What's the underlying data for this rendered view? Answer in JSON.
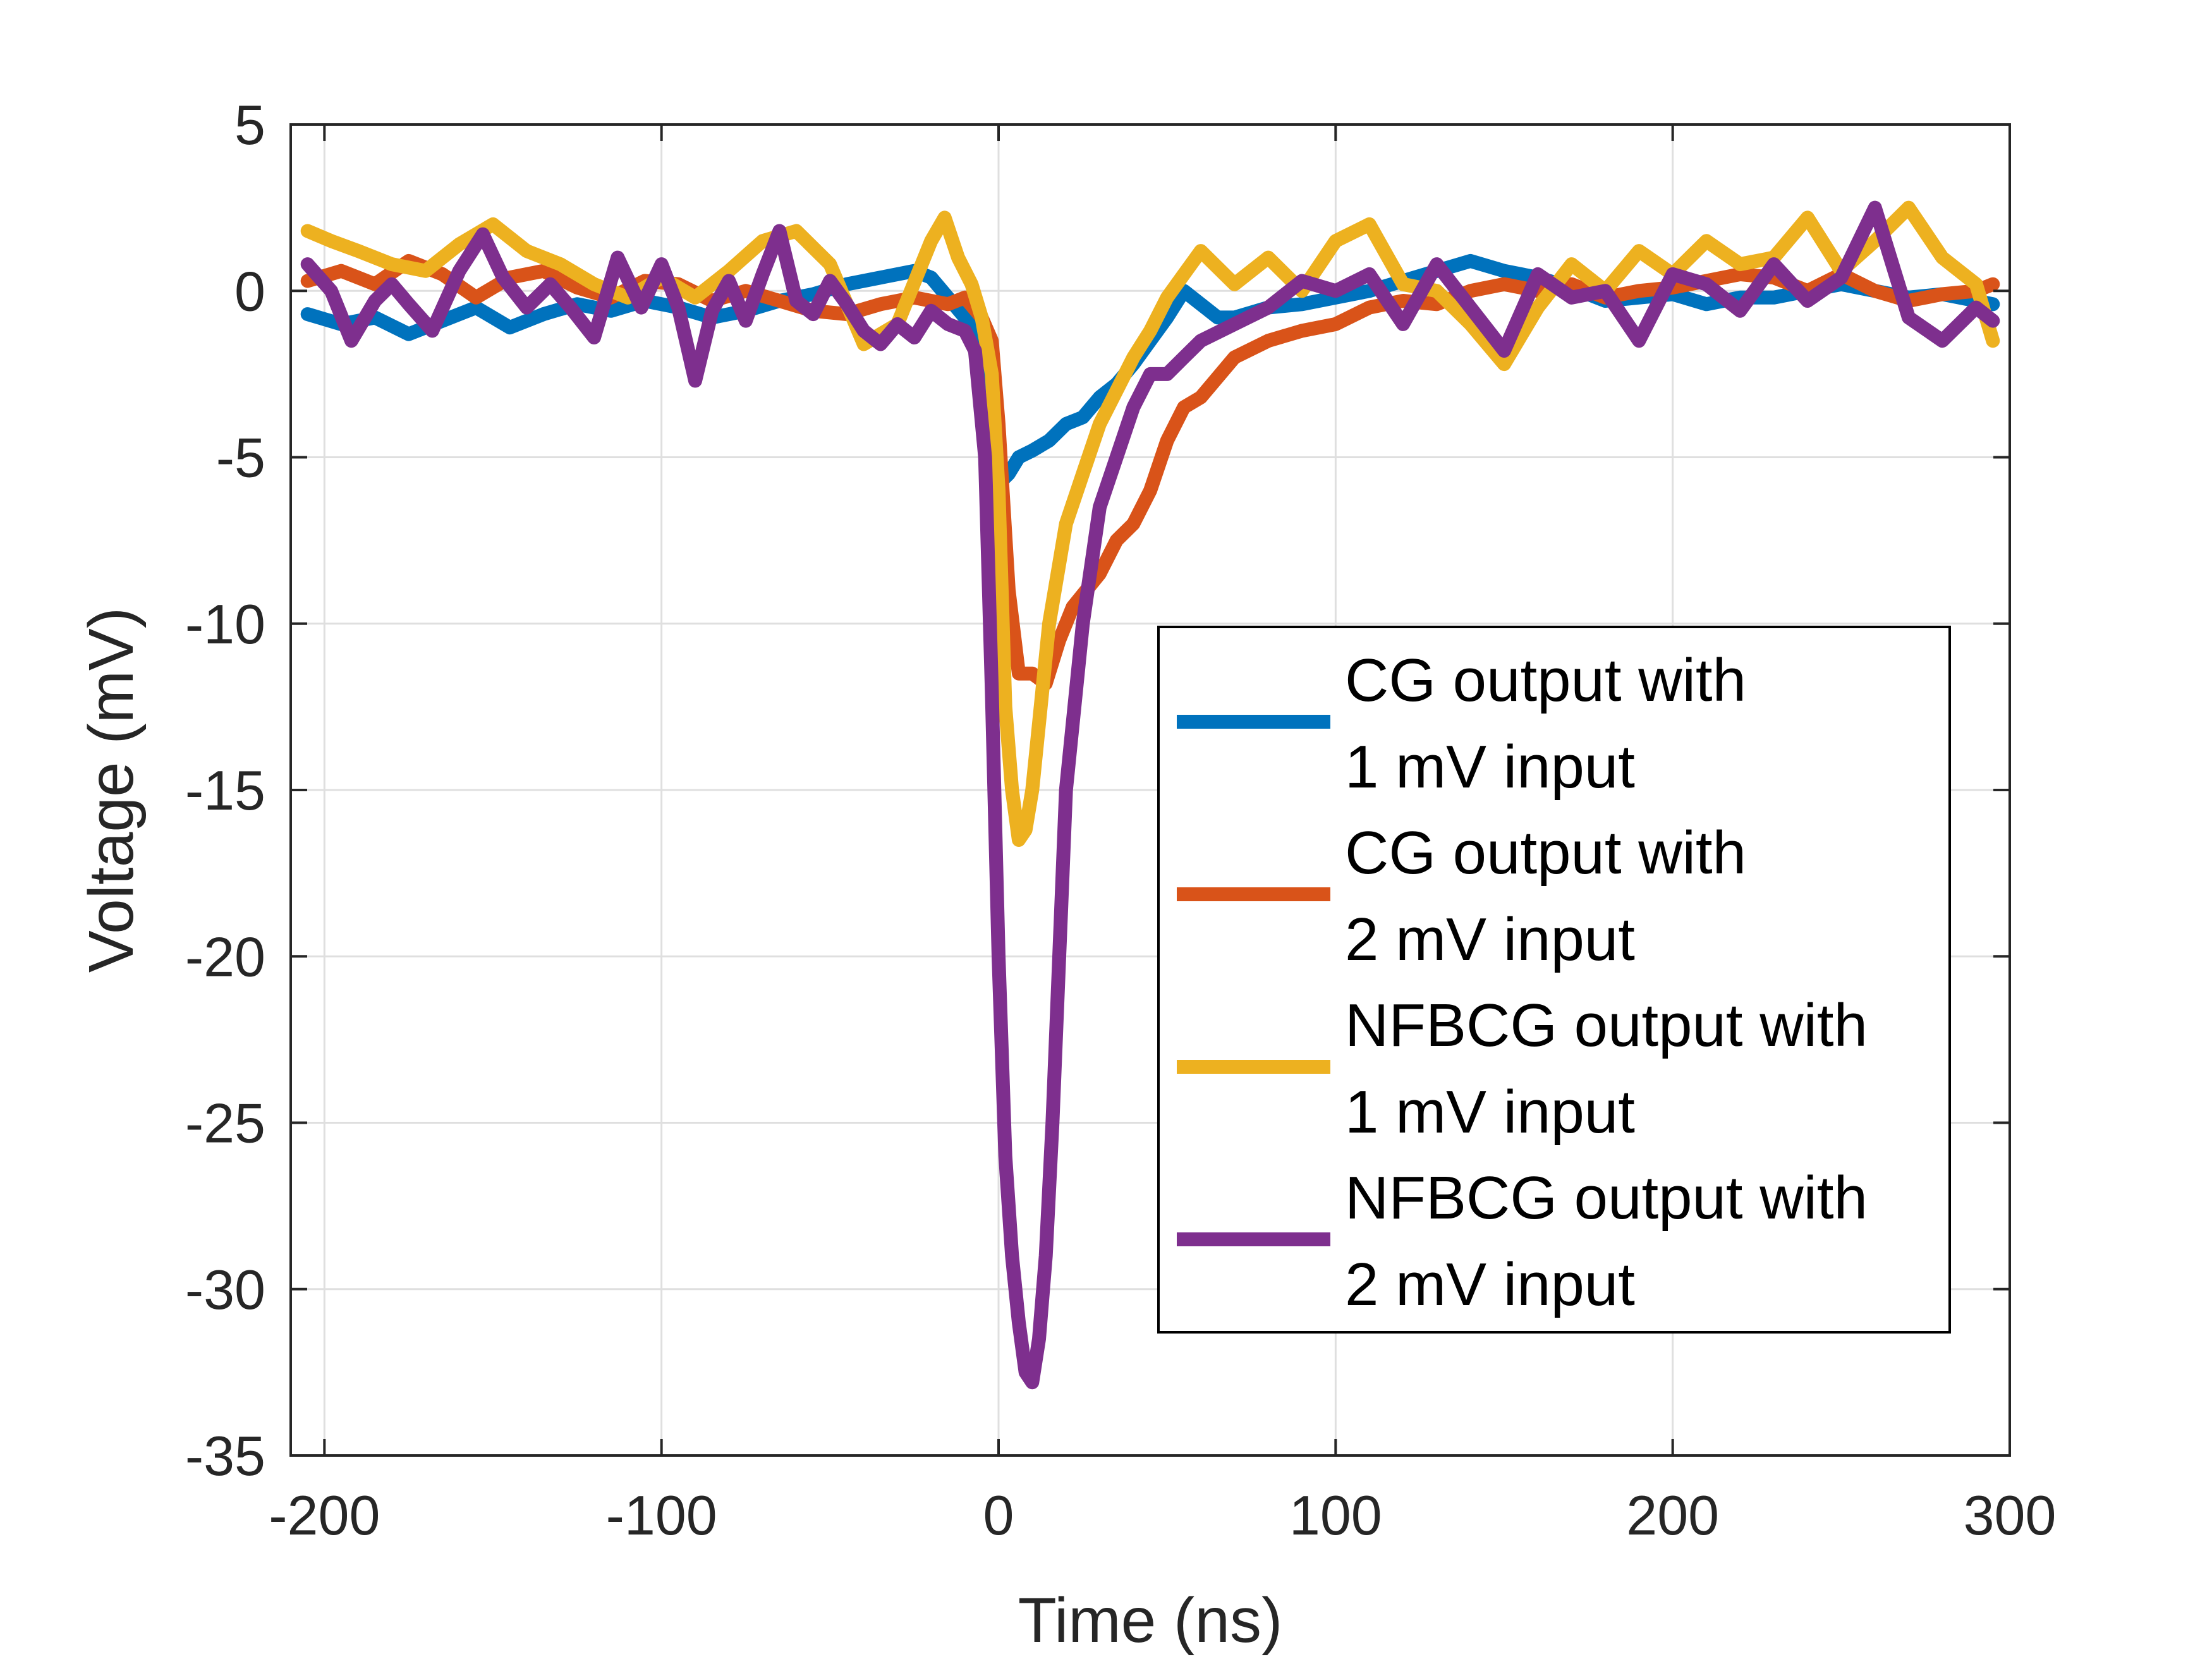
{
  "chart_data": {
    "type": "line",
    "xlabel": "Time (ns)",
    "ylabel": "Voltage (mV)",
    "xlim": [
      -210,
      300
    ],
    "ylim": [
      -35,
      5
    ],
    "xticks": [
      -200,
      -100,
      0,
      100,
      200,
      300
    ],
    "yticks": [
      5,
      0,
      -5,
      -10,
      -15,
      -20,
      -25,
      -30,
      -35
    ],
    "xtick_labels": [
      "-200",
      "-100",
      "0",
      "100",
      "200",
      "300"
    ],
    "ytick_labels": [
      "5",
      "0",
      "-5",
      "-10",
      "-15",
      "-20",
      "-25",
      "-30",
      "-35"
    ],
    "grid": true,
    "legend": "inside-right",
    "series": [
      {
        "name": "CG output with 1 mV input",
        "legend_lines": [
          "CG output with",
          "1 mV input"
        ],
        "color": "#0072BD",
        "x": [
          -205,
          -195,
          -185,
          -175,
          -165,
          -155,
          -145,
          -135,
          -125,
          -115,
          -105,
          -95,
          -85,
          -75,
          -65,
          -55,
          -45,
          -35,
          -25,
          -20,
          -15,
          -10,
          -5,
          -3,
          0,
          3,
          6,
          10,
          15,
          20,
          25,
          30,
          35,
          40,
          45,
          50,
          55,
          60,
          65,
          70,
          80,
          90,
          100,
          110,
          120,
          130,
          140,
          150,
          160,
          170,
          180,
          190,
          200,
          210,
          220,
          230,
          240,
          250,
          260,
          270,
          280,
          290,
          295
        ],
        "y": [
          -0.7,
          -1.0,
          -0.8,
          -1.3,
          -0.9,
          -0.5,
          -1.1,
          -0.7,
          -0.4,
          -0.6,
          -0.3,
          -0.5,
          -0.8,
          -0.6,
          -0.3,
          -0.1,
          0.2,
          0.4,
          0.6,
          0.4,
          -0.2,
          -0.8,
          -1.3,
          -3.0,
          -5.8,
          -5.5,
          -5.0,
          -4.8,
          -4.5,
          -4.0,
          -3.8,
          -3.2,
          -2.8,
          -2.2,
          -1.5,
          -0.8,
          0.0,
          -0.4,
          -0.8,
          -0.8,
          -0.5,
          -0.4,
          -0.2,
          0.0,
          0.3,
          0.6,
          0.9,
          0.6,
          0.4,
          0.1,
          -0.3,
          -0.2,
          -0.1,
          -0.4,
          -0.2,
          -0.2,
          0.0,
          0.2,
          0.0,
          -0.2,
          -0.1,
          -0.3,
          -0.4
        ]
      },
      {
        "name": "CG output with 2 mV input",
        "legend_lines": [
          "CG output with",
          "2 mV input"
        ],
        "color": "#D95319",
        "x": [
          -205,
          -195,
          -185,
          -175,
          -165,
          -155,
          -145,
          -135,
          -125,
          -115,
          -105,
          -95,
          -85,
          -75,
          -65,
          -55,
          -45,
          -35,
          -25,
          -15,
          -10,
          -5,
          -2,
          0,
          3,
          6,
          10,
          14,
          18,
          22,
          26,
          30,
          35,
          40,
          45,
          50,
          55,
          60,
          70,
          80,
          90,
          100,
          110,
          120,
          130,
          140,
          150,
          160,
          170,
          180,
          190,
          200,
          210,
          220,
          230,
          240,
          250,
          260,
          270,
          280,
          290,
          295
        ],
        "y": [
          0.3,
          0.6,
          0.2,
          0.9,
          0.5,
          -0.2,
          0.4,
          0.6,
          0.1,
          -0.2,
          0.3,
          0.2,
          -0.3,
          0.0,
          -0.3,
          -0.6,
          -0.7,
          -0.4,
          -0.2,
          -0.4,
          -0.2,
          -0.8,
          -1.5,
          -4.0,
          -9.0,
          -11.5,
          -11.5,
          -11.8,
          -10.5,
          -9.5,
          -9.0,
          -8.5,
          -7.5,
          -7.0,
          -6.0,
          -4.5,
          -3.5,
          -3.2,
          -2.0,
          -1.5,
          -1.2,
          -1.0,
          -0.5,
          -0.3,
          -0.4,
          0.0,
          0.2,
          0.0,
          0.2,
          -0.2,
          0.0,
          0.1,
          0.3,
          0.5,
          0.4,
          0.0,
          0.5,
          0.0,
          -0.3,
          -0.1,
          0.0,
          0.2
        ]
      },
      {
        "name": "NFBCG output with 1 mV input",
        "legend_lines": [
          "NFBCG output with",
          "1 mV input"
        ],
        "color": "#EDB120",
        "x": [
          -205,
          -198,
          -190,
          -180,
          -170,
          -160,
          -150,
          -140,
          -130,
          -120,
          -110,
          -100,
          -90,
          -80,
          -70,
          -60,
          -50,
          -40,
          -30,
          -20,
          -16,
          -12,
          -8,
          -5,
          -2,
          0,
          2,
          4,
          6,
          8,
          10,
          12,
          15,
          20,
          25,
          30,
          35,
          40,
          45,
          50,
          55,
          60,
          70,
          80,
          90,
          100,
          110,
          120,
          130,
          140,
          150,
          160,
          170,
          180,
          190,
          200,
          210,
          220,
          230,
          240,
          250,
          260,
          270,
          280,
          290,
          295
        ],
        "y": [
          1.8,
          1.5,
          1.2,
          0.8,
          0.6,
          1.4,
          2.0,
          1.2,
          0.8,
          0.2,
          -0.2,
          0.4,
          -0.2,
          0.6,
          1.5,
          1.8,
          0.8,
          -1.6,
          -1.0,
          1.5,
          2.2,
          1.0,
          0.2,
          -0.8,
          -2.5,
          -6.0,
          -12.5,
          -15.0,
          -16.5,
          -16.2,
          -15.0,
          -13.0,
          -10.0,
          -7.0,
          -5.5,
          -4.0,
          -3.0,
          -2.0,
          -1.2,
          -0.2,
          0.5,
          1.2,
          0.2,
          1.0,
          0.0,
          1.5,
          2.0,
          0.2,
          0.0,
          -1.0,
          -2.2,
          -0.5,
          0.8,
          0.0,
          1.2,
          0.5,
          1.5,
          0.8,
          1.0,
          2.2,
          0.6,
          1.5,
          2.5,
          1.0,
          0.2,
          -1.5
        ]
      },
      {
        "name": "NFBCG output with 2 mV input",
        "legend_lines": [
          "NFBCG output with",
          "2 mV input"
        ],
        "color": "#7E2F8E",
        "x": [
          -205,
          -198,
          -192,
          -185,
          -180,
          -175,
          -168,
          -160,
          -153,
          -147,
          -140,
          -133,
          -127,
          -120,
          -113,
          -106,
          -100,
          -95,
          -90,
          -85,
          -80,
          -75,
          -70,
          -65,
          -60,
          -55,
          -50,
          -45,
          -40,
          -35,
          -30,
          -25,
          -20,
          -15,
          -10,
          -7,
          -4,
          -2,
          0,
          2,
          4,
          6,
          8,
          10,
          12,
          14,
          16,
          18,
          20,
          25,
          30,
          35,
          40,
          45,
          50,
          55,
          60,
          70,
          80,
          90,
          100,
          110,
          120,
          130,
          140,
          150,
          160,
          170,
          180,
          190,
          200,
          210,
          220,
          230,
          240,
          250,
          260,
          270,
          280,
          290,
          295
        ],
        "y": [
          0.8,
          0.0,
          -1.5,
          -0.3,
          0.2,
          -0.4,
          -1.2,
          0.6,
          1.7,
          0.4,
          -0.5,
          0.2,
          -0.5,
          -1.4,
          1.0,
          -0.5,
          0.8,
          -0.5,
          -2.7,
          -0.6,
          0.3,
          -0.9,
          0.5,
          1.8,
          -0.3,
          -0.7,
          0.3,
          -0.4,
          -1.2,
          -1.6,
          -1.0,
          -1.4,
          -0.6,
          -1.0,
          -1.2,
          -1.8,
          -5.0,
          -12.0,
          -20.0,
          -26.0,
          -29.0,
          -31.0,
          -32.5,
          -32.8,
          -31.5,
          -29.0,
          -25.0,
          -20.0,
          -15.0,
          -10.0,
          -6.5,
          -5.0,
          -3.5,
          -2.5,
          -2.5,
          -2.0,
          -1.5,
          -1.0,
          -0.5,
          0.3,
          0.0,
          0.5,
          -1.0,
          0.8,
          -0.5,
          -1.8,
          0.5,
          -0.2,
          0.0,
          -1.5,
          0.5,
          0.2,
          -0.6,
          0.8,
          -0.3,
          0.4,
          2.5,
          -0.8,
          -1.5,
          -0.5,
          -0.9
        ]
      }
    ]
  }
}
